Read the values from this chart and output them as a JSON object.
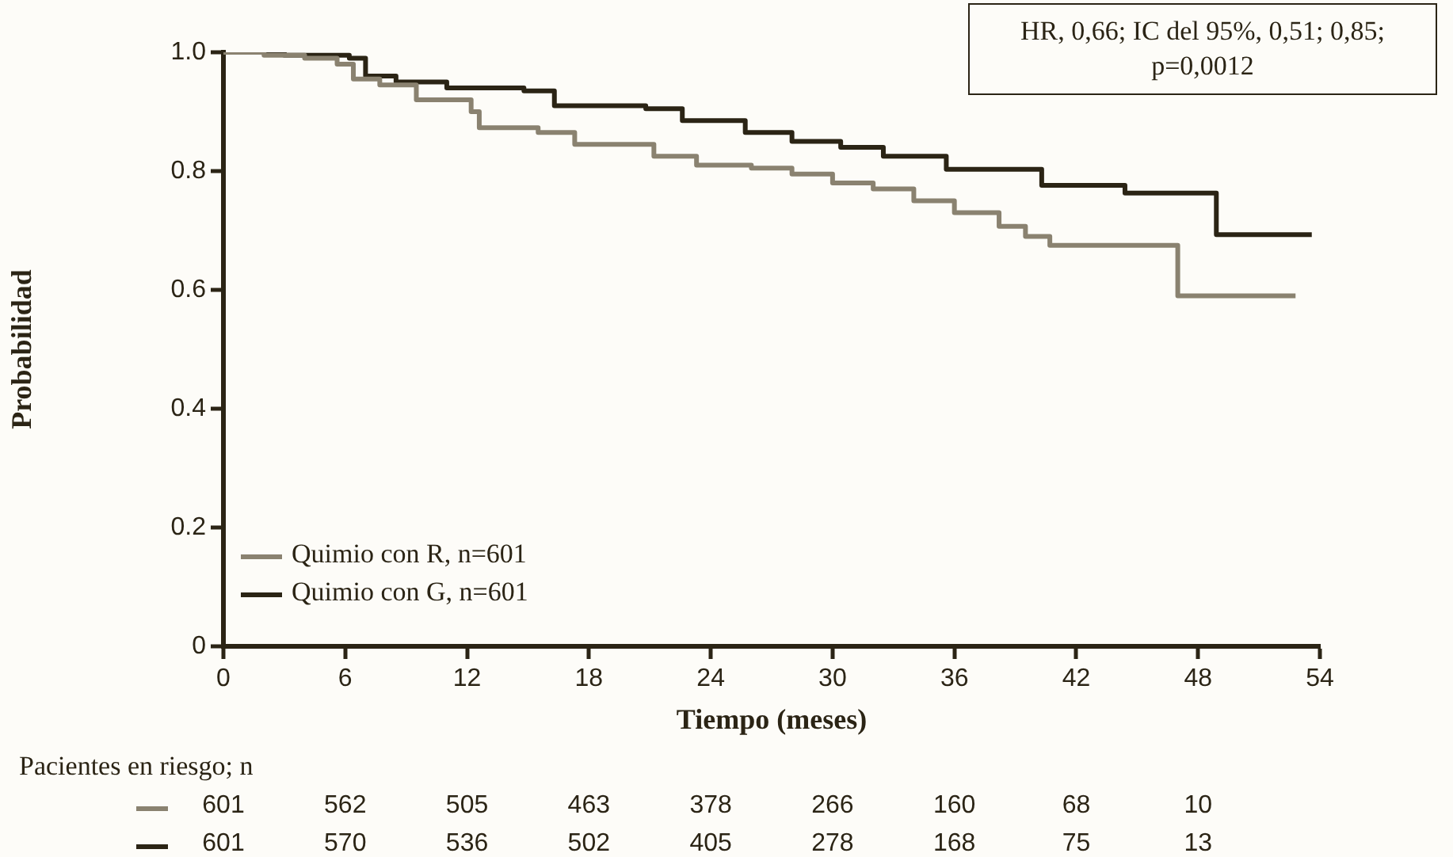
{
  "chart_data": {
    "type": "step",
    "xlabel": "Tiempo (meses)",
    "ylabel": "Probabilidad",
    "xlim": [
      0,
      54
    ],
    "xticks": [
      0,
      6,
      12,
      18,
      24,
      30,
      36,
      42,
      48,
      54
    ],
    "ylim": [
      0,
      1
    ],
    "yticks": [
      0,
      {
        "value": 0.2,
        "label": "0.2"
      },
      {
        "value": 0.4,
        "label": "0.4"
      },
      {
        "value": 0.6,
        "label": "0.6"
      },
      {
        "value": 0.8,
        "label": "0.8"
      },
      {
        "value": 1,
        "label": "1.0"
      }
    ],
    "grid": false,
    "legend": "bottom left",
    "marker": "none",
    "line_style": "solid",
    "series": [
      {
        "name": "Quimio con R, n=601",
        "color": "#8a8270",
        "x": [
          0,
          2,
          4,
          5.6,
          6.4,
          7.7,
          9.5,
          12.2,
          12.6,
          15.5,
          17.3,
          21.2,
          23.3,
          26,
          28,
          30,
          32,
          34,
          36,
          38.2,
          39.5,
          40.7,
          47,
          52.8
        ],
        "values": [
          1,
          0.995,
          0.99,
          0.98,
          0.955,
          0.945,
          0.92,
          0.9,
          0.873,
          0.865,
          0.845,
          0.825,
          0.81,
          0.805,
          0.795,
          0.78,
          0.77,
          0.75,
          0.73,
          0.707,
          0.69,
          0.675,
          0.59,
          0.59
        ]
      },
      {
        "name": "Quimio con G, n=601",
        "color": "#2b2415",
        "x": [
          0,
          3,
          6.2,
          7,
          8.5,
          11,
          14.8,
          16.3,
          20.8,
          22.6,
          25.7,
          28,
          30.4,
          32.5,
          35.6,
          40.3,
          44.4,
          48.9,
          53.6
        ],
        "values": [
          1,
          0.995,
          0.99,
          0.96,
          0.95,
          0.94,
          0.935,
          0.91,
          0.905,
          0.885,
          0.865,
          0.85,
          0.84,
          0.825,
          0.803,
          0.776,
          0.763,
          0.693,
          0.693
        ]
      }
    ],
    "annotations": [
      "HR, 0,66; IC del 95%, 0,51; 0,85; p=0,0012",
      "Pacientes en riesgo; n",
      "601 562 505 463 378 266 160 68 10",
      "601 570 536 502 405 278 168 75 13"
    ]
  }
}
